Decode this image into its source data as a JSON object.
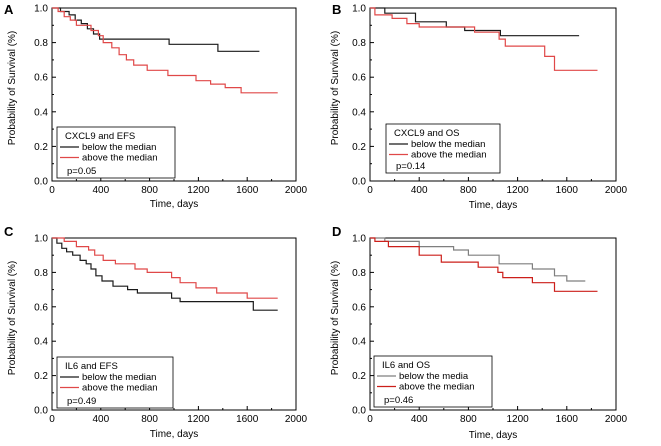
{
  "chart_data": [
    {
      "panel": "A",
      "type": "line",
      "title": "",
      "xlabel": "Time, days",
      "ylabel": "Probability of Survival (%)",
      "xlim": [
        0,
        2000
      ],
      "ylim": [
        0,
        1.0
      ],
      "xticks": [
        0,
        400,
        800,
        1200,
        1600,
        2000
      ],
      "yticks": [
        0.0,
        0.2,
        0.4,
        0.6,
        0.8,
        1.0
      ],
      "xtick_labels": [
        "0",
        "400",
        "800",
        "1200",
        "1600",
        "2000"
      ],
      "ytick_labels": [
        "0.0",
        "0.2",
        "0.4",
        "0.6",
        "0.8",
        "1.0"
      ],
      "legend": {
        "title": "CXCL9 and EFS",
        "note": "p=0.05",
        "position": "bottom-left"
      },
      "series": [
        {
          "name": "below the median",
          "color": "#1a1a1a",
          "points": [
            [
              0,
              1.0
            ],
            [
              70,
              1.0
            ],
            [
              70,
              0.98
            ],
            [
              140,
              0.98
            ],
            [
              140,
              0.96
            ],
            [
              190,
              0.96
            ],
            [
              190,
              0.93
            ],
            [
              240,
              0.93
            ],
            [
              240,
              0.91
            ],
            [
              290,
              0.91
            ],
            [
              290,
              0.88
            ],
            [
              340,
              0.88
            ],
            [
              340,
              0.85
            ],
            [
              390,
              0.85
            ],
            [
              390,
              0.82
            ],
            [
              960,
              0.82
            ],
            [
              960,
              0.79
            ],
            [
              1360,
              0.79
            ],
            [
              1360,
              0.75
            ],
            [
              1700,
              0.75
            ]
          ]
        },
        {
          "name": "above the median",
          "color": "#e04848",
          "points": [
            [
              0,
              1.0
            ],
            [
              50,
              1.0
            ],
            [
              50,
              0.98
            ],
            [
              100,
              0.98
            ],
            [
              100,
              0.95
            ],
            [
              150,
              0.95
            ],
            [
              150,
              0.93
            ],
            [
              200,
              0.93
            ],
            [
              200,
              0.9
            ],
            [
              320,
              0.9
            ],
            [
              320,
              0.87
            ],
            [
              380,
              0.87
            ],
            [
              380,
              0.84
            ],
            [
              420,
              0.84
            ],
            [
              420,
              0.8
            ],
            [
              490,
              0.8
            ],
            [
              490,
              0.77
            ],
            [
              550,
              0.77
            ],
            [
              550,
              0.73
            ],
            [
              610,
              0.73
            ],
            [
              610,
              0.7
            ],
            [
              670,
              0.7
            ],
            [
              670,
              0.67
            ],
            [
              780,
              0.67
            ],
            [
              780,
              0.64
            ],
            [
              950,
              0.64
            ],
            [
              950,
              0.61
            ],
            [
              1180,
              0.61
            ],
            [
              1180,
              0.58
            ],
            [
              1300,
              0.58
            ],
            [
              1300,
              0.56
            ],
            [
              1420,
              0.56
            ],
            [
              1420,
              0.54
            ],
            [
              1550,
              0.54
            ],
            [
              1550,
              0.51
            ],
            [
              1850,
              0.51
            ]
          ]
        }
      ]
    },
    {
      "panel": "B",
      "type": "line",
      "title": "",
      "xlabel": "Time, days",
      "ylabel": "Probability of Survival (%)",
      "xlim": [
        0,
        2000
      ],
      "ylim": [
        0,
        1.0
      ],
      "xticks": [
        0,
        400,
        800,
        1200,
        1600,
        2000
      ],
      "yticks": [
        0.0,
        0.2,
        0.4,
        0.6,
        0.8,
        1.0
      ],
      "xtick_labels": [
        "0",
        "400",
        "800",
        "1200",
        "1600",
        "2000"
      ],
      "ytick_labels": [
        "0.0",
        "0.2",
        "0.4",
        "0.6",
        "0.8",
        "1.0"
      ],
      "legend": {
        "title": "CXCL9 and OS",
        "note": "p=0.14",
        "position": "bottom-left"
      },
      "series": [
        {
          "name": "below the median",
          "color": "#1a1a1a",
          "points": [
            [
              0,
              1.0
            ],
            [
              120,
              1.0
            ],
            [
              120,
              0.97
            ],
            [
              370,
              0.97
            ],
            [
              370,
              0.92
            ],
            [
              620,
              0.92
            ],
            [
              620,
              0.89
            ],
            [
              770,
              0.89
            ],
            [
              770,
              0.87
            ],
            [
              1060,
              0.87
            ],
            [
              1060,
              0.84
            ],
            [
              1700,
              0.84
            ]
          ]
        },
        {
          "name": "above the median",
          "color": "#e04848",
          "points": [
            [
              0,
              1.0
            ],
            [
              40,
              1.0
            ],
            [
              40,
              0.96
            ],
            [
              180,
              0.96
            ],
            [
              180,
              0.94
            ],
            [
              300,
              0.94
            ],
            [
              300,
              0.91
            ],
            [
              400,
              0.91
            ],
            [
              400,
              0.89
            ],
            [
              850,
              0.89
            ],
            [
              850,
              0.86
            ],
            [
              1050,
              0.86
            ],
            [
              1050,
              0.82
            ],
            [
              1100,
              0.82
            ],
            [
              1100,
              0.78
            ],
            [
              1420,
              0.78
            ],
            [
              1420,
              0.72
            ],
            [
              1500,
              0.72
            ],
            [
              1500,
              0.64
            ],
            [
              1850,
              0.64
            ]
          ]
        }
      ]
    },
    {
      "panel": "C",
      "type": "line",
      "title": "",
      "xlabel": "Time, days",
      "ylabel": "Probability of Survival (%)",
      "xlim": [
        0,
        2000
      ],
      "ylim": [
        0,
        1.0
      ],
      "xticks": [
        0,
        400,
        800,
        1200,
        1600,
        2000
      ],
      "yticks": [
        0.0,
        0.2,
        0.4,
        0.6,
        0.8,
        1.0
      ],
      "xtick_labels": [
        "0",
        "400",
        "800",
        "1200",
        "1600",
        "2000"
      ],
      "ytick_labels": [
        "0.0",
        "0.2",
        "0.4",
        "0.6",
        "0.8",
        "1.0"
      ],
      "legend": {
        "title": "IL6 and EFS",
        "note": "p=0.49",
        "position": "bottom-left"
      },
      "series": [
        {
          "name": "below the median",
          "color": "#1a1a1a",
          "points": [
            [
              0,
              1.0
            ],
            [
              40,
              1.0
            ],
            [
              40,
              0.97
            ],
            [
              80,
              0.97
            ],
            [
              80,
              0.94
            ],
            [
              120,
              0.94
            ],
            [
              120,
              0.92
            ],
            [
              170,
              0.92
            ],
            [
              170,
              0.9
            ],
            [
              230,
              0.9
            ],
            [
              230,
              0.87
            ],
            [
              280,
              0.87
            ],
            [
              280,
              0.85
            ],
            [
              320,
              0.85
            ],
            [
              320,
              0.82
            ],
            [
              360,
              0.82
            ],
            [
              360,
              0.78
            ],
            [
              410,
              0.78
            ],
            [
              410,
              0.75
            ],
            [
              500,
              0.75
            ],
            [
              500,
              0.72
            ],
            [
              620,
              0.72
            ],
            [
              620,
              0.7
            ],
            [
              700,
              0.7
            ],
            [
              700,
              0.68
            ],
            [
              980,
              0.68
            ],
            [
              980,
              0.65
            ],
            [
              1050,
              0.65
            ],
            [
              1050,
              0.63
            ],
            [
              1650,
              0.63
            ],
            [
              1650,
              0.58
            ],
            [
              1850,
              0.58
            ]
          ]
        },
        {
          "name": "above the median",
          "color": "#e04848",
          "points": [
            [
              0,
              1.0
            ],
            [
              100,
              1.0
            ],
            [
              100,
              0.98
            ],
            [
              200,
              0.98
            ],
            [
              200,
              0.95
            ],
            [
              300,
              0.95
            ],
            [
              300,
              0.93
            ],
            [
              350,
              0.93
            ],
            [
              350,
              0.9
            ],
            [
              420,
              0.9
            ],
            [
              420,
              0.87
            ],
            [
              520,
              0.87
            ],
            [
              520,
              0.85
            ],
            [
              680,
              0.85
            ],
            [
              680,
              0.82
            ],
            [
              780,
              0.82
            ],
            [
              780,
              0.8
            ],
            [
              980,
              0.8
            ],
            [
              980,
              0.77
            ],
            [
              1050,
              0.77
            ],
            [
              1050,
              0.74
            ],
            [
              1180,
              0.74
            ],
            [
              1180,
              0.71
            ],
            [
              1350,
              0.71
            ],
            [
              1350,
              0.68
            ],
            [
              1600,
              0.68
            ],
            [
              1600,
              0.65
            ],
            [
              1850,
              0.65
            ]
          ]
        }
      ]
    },
    {
      "panel": "D",
      "type": "line",
      "title": "",
      "xlabel": "Time, days",
      "ylabel": "Probability of Survival (%)",
      "xlim": [
        0,
        2000
      ],
      "ylim": [
        0,
        1.0
      ],
      "xticks": [
        0,
        400,
        800,
        1200,
        1600,
        2000
      ],
      "yticks": [
        0.0,
        0.2,
        0.4,
        0.6,
        0.8,
        1.0
      ],
      "xtick_labels": [
        "0",
        "400",
        "800",
        "1200",
        "1600",
        "2000"
      ],
      "ytick_labels": [
        "0.0",
        "0.2",
        "0.4",
        "0.6",
        "0.8",
        "1.0"
      ],
      "legend": {
        "title": "IL6 and OS",
        "note": "p=0.46",
        "position": "bottom-left"
      },
      "series": [
        {
          "name": "below the media",
          "color": "#7f7f7f",
          "points": [
            [
              0,
              1.0
            ],
            [
              120,
              1.0
            ],
            [
              120,
              0.98
            ],
            [
              400,
              0.98
            ],
            [
              400,
              0.95
            ],
            [
              680,
              0.95
            ],
            [
              680,
              0.93
            ],
            [
              800,
              0.93
            ],
            [
              800,
              0.9
            ],
            [
              1050,
              0.9
            ],
            [
              1050,
              0.85
            ],
            [
              1320,
              0.85
            ],
            [
              1320,
              0.82
            ],
            [
              1500,
              0.82
            ],
            [
              1500,
              0.78
            ],
            [
              1600,
              0.78
            ],
            [
              1600,
              0.75
            ],
            [
              1750,
              0.75
            ]
          ]
        },
        {
          "name": "above the median",
          "color": "#cc1f1a",
          "points": [
            [
              0,
              1.0
            ],
            [
              40,
              1.0
            ],
            [
              40,
              0.98
            ],
            [
              150,
              0.98
            ],
            [
              150,
              0.95
            ],
            [
              400,
              0.95
            ],
            [
              400,
              0.9
            ],
            [
              580,
              0.9
            ],
            [
              580,
              0.86
            ],
            [
              880,
              0.86
            ],
            [
              880,
              0.83
            ],
            [
              1040,
              0.83
            ],
            [
              1040,
              0.8
            ],
            [
              1080,
              0.8
            ],
            [
              1080,
              0.77
            ],
            [
              1320,
              0.77
            ],
            [
              1320,
              0.74
            ],
            [
              1500,
              0.74
            ],
            [
              1500,
              0.69
            ],
            [
              1850,
              0.69
            ]
          ]
        }
      ]
    }
  ]
}
